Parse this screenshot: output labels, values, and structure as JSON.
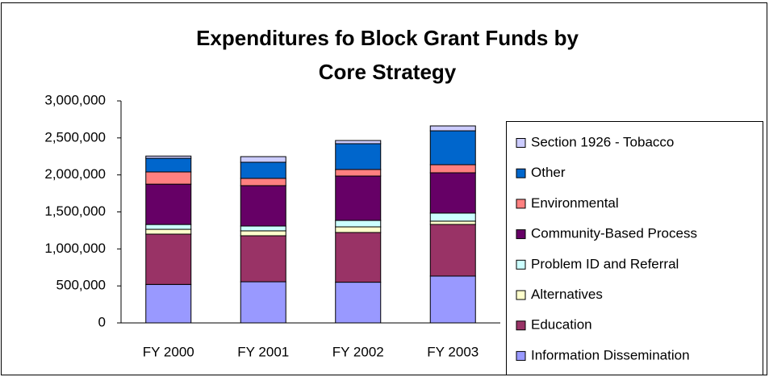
{
  "chart_data": {
    "type": "stacked_bar",
    "title": [
      "Expenditures fo Block Grant Funds by",
      "Core Strategy"
    ],
    "categories": [
      "FY 2000",
      "FY 2001",
      "FY 2002",
      "FY 2003"
    ],
    "series": [
      {
        "name": "Information Dissemination",
        "color": "#9999ff",
        "values": [
          520000,
          556000,
          550000,
          633000
        ]
      },
      {
        "name": "Education",
        "color": "#993366",
        "values": [
          680000,
          622000,
          672000,
          698000
        ]
      },
      {
        "name": "Alternatives",
        "color": "#ffffcc",
        "values": [
          65000,
          66000,
          76000,
          44000
        ]
      },
      {
        "name": "Problem ID and Referral",
        "color": "#ccffff",
        "values": [
          65000,
          65000,
          87000,
          109000
        ]
      },
      {
        "name": "Community-Based Process",
        "color": "#660066",
        "values": [
          545000,
          546000,
          600000,
          545000
        ]
      },
      {
        "name": "Environmental",
        "color": "#ff8080",
        "values": [
          165000,
          98000,
          88000,
          109000
        ]
      },
      {
        "name": "Other",
        "color": "#0066cc",
        "values": [
          185000,
          218000,
          349000,
          458000
        ]
      },
      {
        "name": "Section 1926 - Tobacco",
        "color": "#ccccff",
        "values": [
          30000,
          76000,
          43000,
          66000
        ]
      }
    ],
    "ylim": [
      0,
      3000000
    ],
    "yticks": [
      0,
      {
        "value": 500000,
        "label": "500,000"
      },
      {
        "value": 1000000,
        "label": "1,000,000"
      },
      {
        "value": 1500000,
        "label": "1,500,000"
      },
      {
        "value": 2000000,
        "label": "2,000,000"
      },
      {
        "value": 2500000,
        "label": "2,500,000"
      },
      {
        "value": 3000000,
        "label": "3,000,000"
      }
    ],
    "legend": "right"
  }
}
